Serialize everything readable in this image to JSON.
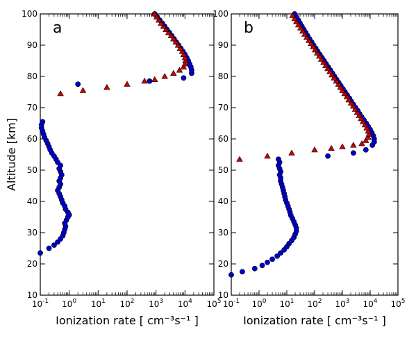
{
  "chart_data": [
    {
      "type": "scatter",
      "panel_label": "a",
      "xscale": "log",
      "xlim": [
        0.1,
        100000
      ],
      "ylim": [
        10,
        100
      ],
      "xlabel": "Ionization rate [ cm⁻³s⁻¹ ]",
      "ylabel": "Altitude [km]",
      "yticks": [
        10,
        20,
        30,
        40,
        50,
        60,
        70,
        80,
        90,
        100
      ],
      "xticks": [
        {
          "value": 0.1,
          "base": "10",
          "exp": "-1"
        },
        {
          "value": 1,
          "base": "10",
          "exp": "0"
        },
        {
          "value": 10,
          "base": "10",
          "exp": "1"
        },
        {
          "value": 100,
          "base": "10",
          "exp": "2"
        },
        {
          "value": 1000,
          "base": "10",
          "exp": "3"
        },
        {
          "value": 10000,
          "base": "10",
          "exp": "4"
        },
        {
          "value": 100000,
          "base": "10",
          "exp": "5"
        }
      ],
      "grid": false,
      "series": [
        {
          "marker": "circle",
          "color": "#0000cc",
          "points": [
            [
              0.1,
              23.5
            ],
            [
              0.2,
              25
            ],
            [
              0.3,
              26
            ],
            [
              0.4,
              27
            ],
            [
              0.5,
              28
            ],
            [
              0.6,
              29
            ],
            [
              0.65,
              30
            ],
            [
              0.7,
              31
            ],
            [
              0.75,
              32
            ],
            [
              0.7,
              33
            ],
            [
              0.8,
              34
            ],
            [
              0.9,
              35
            ],
            [
              1.0,
              35.7
            ],
            [
              0.9,
              36.5
            ],
            [
              0.75,
              37.5
            ],
            [
              0.7,
              38.5
            ],
            [
              0.6,
              39.5
            ],
            [
              0.55,
              40.5
            ],
            [
              0.5,
              41.5
            ],
            [
              0.45,
              42.5
            ],
            [
              0.4,
              43.5
            ],
            [
              0.45,
              44.5
            ],
            [
              0.5,
              45.5
            ],
            [
              0.45,
              46.5
            ],
            [
              0.5,
              47.5
            ],
            [
              0.55,
              48.5
            ],
            [
              0.5,
              49.5
            ],
            [
              0.45,
              50.5
            ],
            [
              0.5,
              51.5
            ],
            [
              0.4,
              52.5
            ],
            [
              0.35,
              53.5
            ],
            [
              0.3,
              54.5
            ],
            [
              0.25,
              55.5
            ],
            [
              0.22,
              56.5
            ],
            [
              0.2,
              57.5
            ],
            [
              0.18,
              58.5
            ],
            [
              0.16,
              59.5
            ],
            [
              0.14,
              60.5
            ],
            [
              0.13,
              61.5
            ],
            [
              0.12,
              62.5
            ],
            [
              0.11,
              63.5
            ],
            [
              0.11,
              64.5
            ],
            [
              0.12,
              65.5
            ],
            [
              2,
              77.5
            ],
            [
              600,
              78.5
            ],
            [
              9000,
              79.5
            ],
            [
              17000,
              81
            ],
            [
              17000,
              82
            ],
            [
              16000,
              83
            ],
            [
              14500,
              84
            ],
            [
              13000,
              85
            ],
            [
              11500,
              86
            ],
            [
              10000,
              87
            ],
            [
              8500,
              88
            ],
            [
              7200,
              89
            ],
            [
              6000,
              90
            ],
            [
              5000,
              91
            ],
            [
              4200,
              92
            ],
            [
              3500,
              93
            ],
            [
              2900,
              94
            ],
            [
              2400,
              95
            ],
            [
              2000,
              96
            ],
            [
              1650,
              97
            ],
            [
              1350,
              98
            ],
            [
              1100,
              99
            ],
            [
              900,
              100
            ]
          ]
        },
        {
          "marker": "triangle",
          "color": "#cc0000",
          "points": [
            [
              0.5,
              74.5
            ],
            [
              3,
              75.5
            ],
            [
              20,
              76.5
            ],
            [
              100,
              77.5
            ],
            [
              400,
              78.5
            ],
            [
              900,
              79
            ],
            [
              2000,
              80
            ],
            [
              4000,
              81
            ],
            [
              6500,
              82
            ],
            [
              9000,
              83
            ],
            [
              10000,
              84
            ],
            [
              10500,
              85
            ],
            [
              10000,
              86
            ],
            [
              9000,
              87
            ],
            [
              8000,
              88
            ],
            [
              6800,
              89
            ],
            [
              5800,
              90
            ],
            [
              4800,
              91
            ],
            [
              4000,
              92
            ],
            [
              3300,
              93
            ],
            [
              2700,
              94
            ],
            [
              2200,
              95
            ],
            [
              1800,
              96
            ],
            [
              1500,
              97
            ],
            [
              1250,
              98
            ],
            [
              1050,
              99
            ],
            [
              880,
              100
            ]
          ]
        }
      ]
    },
    {
      "type": "scatter",
      "panel_label": "b",
      "xscale": "log",
      "xlim": [
        0.1,
        100000
      ],
      "ylim": [
        10,
        100
      ],
      "xlabel": "Ionization rate [ cm⁻³s⁻¹ ]",
      "ylabel": "",
      "yticks": [
        10,
        20,
        30,
        40,
        50,
        60,
        70,
        80,
        90,
        100
      ],
      "xticks": [
        {
          "value": 0.1,
          "base": "10",
          "exp": "-1"
        },
        {
          "value": 1,
          "base": "10",
          "exp": "0"
        },
        {
          "value": 10,
          "base": "10",
          "exp": "1"
        },
        {
          "value": 100,
          "base": "10",
          "exp": "2"
        },
        {
          "value": 1000,
          "base": "10",
          "exp": "3"
        },
        {
          "value": 10000,
          "base": "10",
          "exp": "4"
        },
        {
          "value": 100000,
          "base": "10",
          "exp": "5"
        }
      ],
      "grid": false,
      "series": [
        {
          "marker": "circle",
          "color": "#0000cc",
          "points": [
            [
              0.1,
              16.5
            ],
            [
              0.25,
              17.5
            ],
            [
              0.7,
              18.5
            ],
            [
              1.3,
              19.5
            ],
            [
              2,
              20.5
            ],
            [
              3,
              21.5
            ],
            [
              4.5,
              22.5
            ],
            [
              6,
              23.5
            ],
            [
              8,
              24.5
            ],
            [
              10,
              25.5
            ],
            [
              12,
              26.5
            ],
            [
              15,
              27.5
            ],
            [
              18,
              28.5
            ],
            [
              20,
              29.5
            ],
            [
              22,
              30.5
            ],
            [
              22,
              31.5
            ],
            [
              20,
              32.5
            ],
            [
              18,
              33.5
            ],
            [
              16,
              34.5
            ],
            [
              14,
              35.5
            ],
            [
              13,
              36.5
            ],
            [
              12,
              37.5
            ],
            [
              11,
              38.5
            ],
            [
              10,
              39.5
            ],
            [
              9,
              40.5
            ],
            [
              8.5,
              41.5
            ],
            [
              8,
              42.5
            ],
            [
              7.5,
              43.5
            ],
            [
              7,
              44.5
            ],
            [
              6.5,
              45.5
            ],
            [
              6,
              46.5
            ],
            [
              6,
              47.5
            ],
            [
              5.5,
              48.5
            ],
            [
              6,
              49.5
            ],
            [
              5.5,
              50.5
            ],
            [
              5,
              51.5
            ],
            [
              5.5,
              52.5
            ],
            [
              5,
              53.5
            ],
            [
              300,
              54.5
            ],
            [
              2500,
              55.5
            ],
            [
              7000,
              56.5
            ],
            [
              12000,
              58
            ],
            [
              14000,
              59
            ],
            [
              14000,
              60
            ],
            [
              13000,
              61
            ],
            [
              11500,
              62
            ],
            [
              10000,
              63
            ],
            [
              8500,
              64
            ],
            [
              7200,
              65
            ],
            [
              6000,
              66
            ],
            [
              5000,
              67
            ],
            [
              4200,
              68
            ],
            [
              3600,
              69
            ],
            [
              3000,
              70
            ],
            [
              2500,
              71
            ],
            [
              2100,
              72
            ],
            [
              1800,
              73
            ],
            [
              1500,
              74
            ],
            [
              1250,
              75
            ],
            [
              1050,
              76
            ],
            [
              880,
              77
            ],
            [
              740,
              78
            ],
            [
              620,
              79
            ],
            [
              520,
              80
            ],
            [
              440,
              81
            ],
            [
              370,
              82
            ],
            [
              310,
              83
            ],
            [
              260,
              84
            ],
            [
              220,
              85
            ],
            [
              185,
              86
            ],
            [
              155,
              87
            ],
            [
              130,
              88
            ],
            [
              110,
              89
            ],
            [
              92,
              90
            ],
            [
              78,
              91
            ],
            [
              66,
              92
            ],
            [
              56,
              93
            ],
            [
              48,
              94
            ],
            [
              41,
              95
            ],
            [
              35,
              96
            ],
            [
              30,
              97
            ],
            [
              26,
              98
            ],
            [
              22,
              99
            ],
            [
              19,
              100
            ]
          ]
        },
        {
          "marker": "triangle",
          "color": "#cc0000",
          "points": [
            [
              0.2,
              53.5
            ],
            [
              2,
              54.5
            ],
            [
              15,
              55.5
            ],
            [
              100,
              56.5
            ],
            [
              400,
              57
            ],
            [
              1000,
              57.5
            ],
            [
              2500,
              58
            ],
            [
              5000,
              58.5
            ],
            [
              7000,
              59.5
            ],
            [
              8500,
              60.5
            ],
            [
              9000,
              61.5
            ],
            [
              8500,
              62.5
            ],
            [
              7500,
              63.5
            ],
            [
              6500,
              64.5
            ],
            [
              5500,
              65.5
            ],
            [
              4700,
              66.5
            ],
            [
              4000,
              67.5
            ],
            [
              3400,
              68.5
            ],
            [
              2900,
              69.5
            ],
            [
              2450,
              70.5
            ],
            [
              2050,
              71.5
            ],
            [
              1700,
              72.5
            ],
            [
              1450,
              73.5
            ],
            [
              1200,
              74.5
            ],
            [
              1000,
              75.5
            ],
            [
              850,
              76.5
            ],
            [
              720,
              77.5
            ],
            [
              600,
              78.5
            ],
            [
              500,
              79.5
            ],
            [
              420,
              80.5
            ],
            [
              350,
              81.5
            ],
            [
              295,
              82.5
            ],
            [
              250,
              83.5
            ],
            [
              210,
              84.5
            ],
            [
              175,
              85.5
            ],
            [
              148,
              86.5
            ],
            [
              124,
              87.5
            ],
            [
              104,
              88.5
            ],
            [
              88,
              89.5
            ],
            [
              74,
              90.5
            ],
            [
              62,
              91.5
            ],
            [
              52,
              92.5
            ],
            [
              44,
              93.5
            ],
            [
              37,
              94.5
            ],
            [
              31,
              95.5
            ],
            [
              26,
              96.5
            ],
            [
              22,
              97.5
            ],
            [
              19,
              98.5
            ],
            [
              16,
              99.5
            ]
          ]
        }
      ]
    }
  ]
}
